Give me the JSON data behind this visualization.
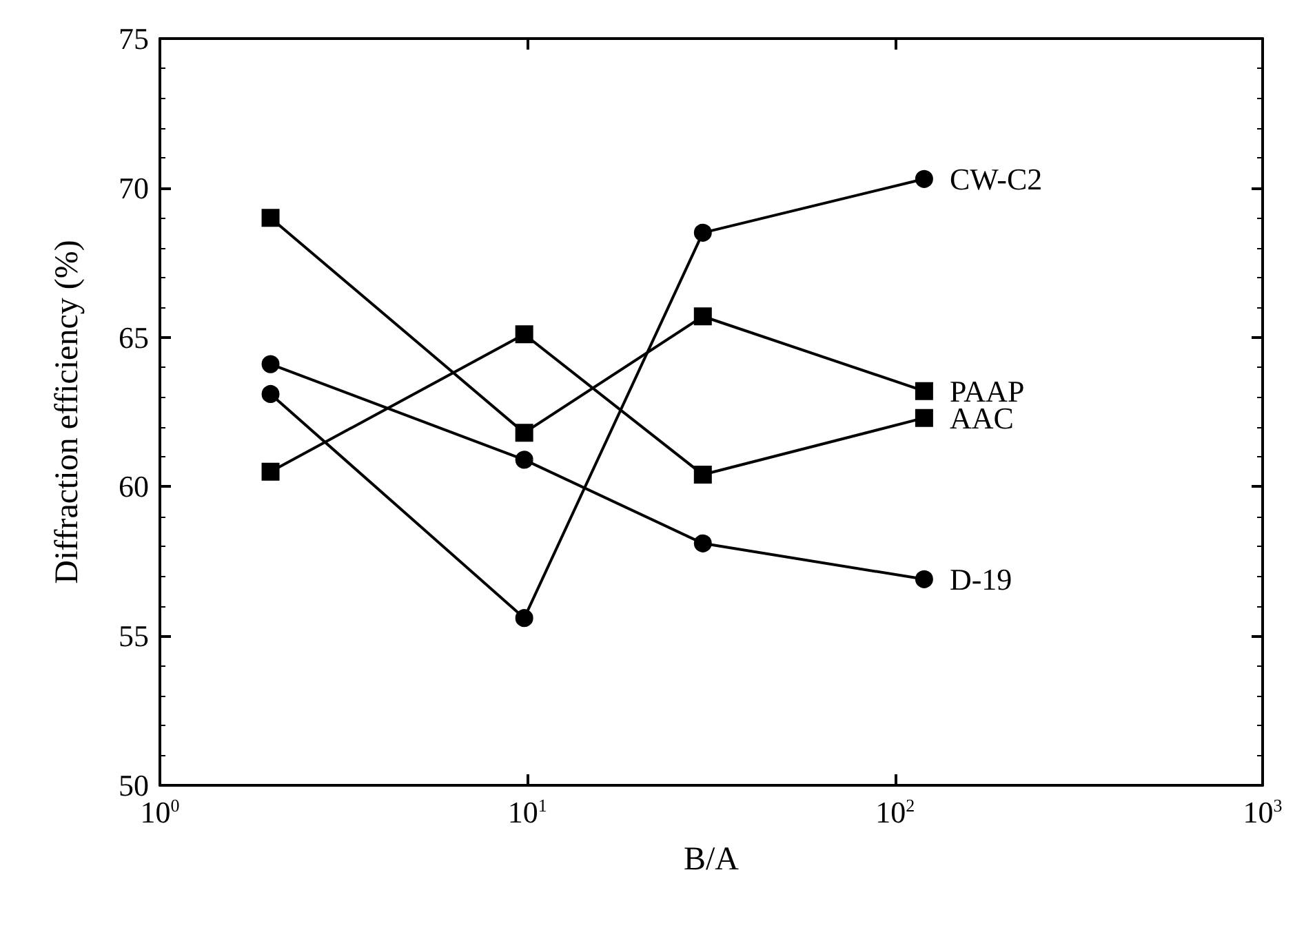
{
  "chart_data": {
    "type": "line",
    "xlabel": "B/A",
    "ylabel": "Diffraction efficiency (%)",
    "log": "x",
    "xlim": [
      1,
      1000
    ],
    "xticks": [
      {
        "value": 1,
        "label": "10$^{0}$"
      },
      {
        "value": 10,
        "label": "10$^{1}$"
      },
      {
        "value": 100,
        "label": "10$^{2}$"
      },
      {
        "value": 1000,
        "label": "10$^{3}$"
      }
    ],
    "ylim": [
      50,
      75
    ],
    "yticks": [
      50,
      55,
      60,
      65,
      70,
      75
    ],
    "grid": false,
    "legend": false,
    "x": [
      2,
      9.8,
      30,
      120
    ],
    "series": [
      {
        "name": "CW-C2",
        "color": "#000000",
        "marker": "circle",
        "values": [
          63.1,
          55.6,
          68.5,
          70.3
        ]
      },
      {
        "name": "PAAP",
        "color": "#000000",
        "marker": "square",
        "values": [
          69.0,
          61.8,
          65.7,
          63.2
        ]
      },
      {
        "name": "AAC",
        "color": "#000000",
        "marker": "square",
        "values": [
          60.5,
          65.1,
          60.4,
          62.3
        ]
      },
      {
        "name": "D-19",
        "color": "#000000",
        "marker": "circle",
        "values": [
          64.1,
          60.9,
          58.1,
          56.9
        ]
      }
    ]
  }
}
